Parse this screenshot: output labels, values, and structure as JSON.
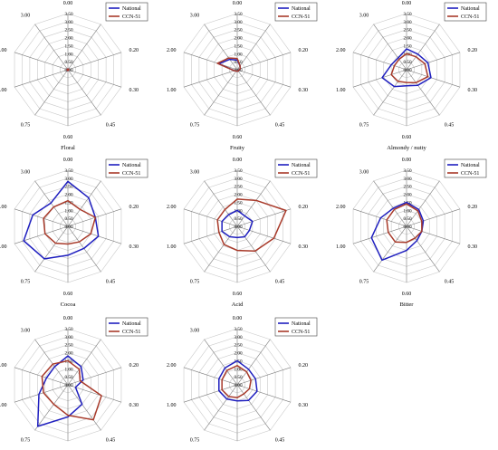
{
  "colors": {
    "national": "#1f1fbf",
    "ccn51": "#a83a2a",
    "grid": "#c9c9c9",
    "spoke": "#7a7a7a"
  },
  "chart_data": [
    {
      "type": "radar",
      "title": "Floral",
      "axes": [
        "0.00",
        "0.10",
        "0.20",
        "0.30",
        "0.45",
        "0.60",
        "0.75",
        "1.00",
        "2.00",
        "3.00"
      ],
      "r_ticks": [
        "0.00",
        "0.50",
        "1.00",
        "1.50",
        "2.00",
        "2.50",
        "3.00",
        "3.50"
      ],
      "rlim": [
        0,
        3.5
      ],
      "series": [
        {
          "name": "National",
          "values": [
            0.05,
            0.05,
            0.05,
            0.05,
            0.05,
            0.05,
            0.05,
            0.05,
            0.05,
            0.05
          ]
        },
        {
          "name": "CCN-51",
          "values": [
            0.05,
            0.05,
            0.05,
            0.05,
            0.05,
            0.05,
            0.05,
            0.05,
            0.05,
            0.05
          ]
        }
      ]
    },
    {
      "type": "radar",
      "title": "Fruity",
      "axes": [
        "0.00",
        "0.10",
        "0.20",
        "0.30",
        "0.45",
        "0.60",
        "0.75",
        "1.00",
        "2.00",
        "3.00"
      ],
      "r_ticks": [
        "0.00",
        "0.50",
        "1.00",
        "1.50",
        "2.00",
        "2.50",
        "3.00",
        "3.50"
      ],
      "rlim": [
        0,
        3.5
      ],
      "series": [
        {
          "name": "National",
          "values": [
            0.6,
            0.3,
            0.2,
            0.1,
            0.1,
            0.1,
            0.1,
            0.2,
            1.2,
            0.8
          ]
        },
        {
          "name": "CCN-51",
          "values": [
            0.7,
            0.3,
            0.2,
            0.1,
            0.1,
            0.1,
            0.1,
            0.2,
            1.3,
            0.9
          ]
        }
      ]
    },
    {
      "type": "radar",
      "title": "Almondy / nutty",
      "axes": [
        "0.00",
        "0.10",
        "0.20",
        "0.30",
        "0.45",
        "0.60",
        "0.75",
        "1.00",
        "2.00",
        "3.00"
      ],
      "r_ticks": [
        "0.00",
        "0.50",
        "1.00",
        "1.50",
        "2.00",
        "2.50",
        "3.00",
        "3.50"
      ],
      "rlim": [
        0,
        3.5
      ],
      "series": [
        {
          "name": "National",
          "values": [
            1.3,
            1.2,
            1.4,
            1.6,
            1.2,
            1.0,
            1.3,
            1.6,
            1.0,
            0.9
          ]
        },
        {
          "name": "CCN-51",
          "values": [
            1.0,
            1.0,
            1.2,
            1.4,
            1.0,
            0.8,
            0.9,
            1.0,
            0.8,
            0.8
          ]
        }
      ]
    },
    {
      "type": "radar",
      "title": "Cocoa",
      "axes": [
        "0.00",
        "0.10",
        "0.20",
        "0.30",
        "0.45",
        "0.60",
        "0.75",
        "1.00",
        "2.00",
        "3.00"
      ],
      "r_ticks": [
        "0.00",
        "0.50",
        "1.00",
        "1.50",
        "2.00",
        "2.50",
        "3.00",
        "3.50"
      ],
      "rlim": [
        0,
        3.5
      ],
      "series": [
        {
          "name": "National",
          "values": [
            2.8,
            2.2,
            1.8,
            2.0,
            1.7,
            1.8,
            2.5,
            2.9,
            2.3,
            1.8
          ]
        },
        {
          "name": "CCN-51",
          "values": [
            1.6,
            1.3,
            1.8,
            1.5,
            1.2,
            1.1,
            1.3,
            1.5,
            1.6,
            1.5
          ]
        }
      ]
    },
    {
      "type": "radar",
      "title": "Acid",
      "axes": [
        "0.00",
        "0.10",
        "0.20",
        "0.30",
        "0.45",
        "0.60",
        "0.75",
        "1.00",
        "2.00",
        "3.00"
      ],
      "r_ticks": [
        "0.00",
        "0.50",
        "1.00",
        "1.50",
        "2.00",
        "2.50",
        "3.00",
        "3.50"
      ],
      "rlim": [
        0,
        3.5
      ],
      "series": [
        {
          "name": "National",
          "values": [
            1.0,
            0.8,
            1.0,
            0.8,
            0.8,
            0.7,
            0.8,
            1.0,
            1.0,
            0.9
          ]
        },
        {
          "name": "CCN-51",
          "values": [
            1.7,
            2.0,
            3.2,
            2.4,
            1.9,
            1.5,
            1.4,
            1.2,
            1.3,
            1.3
          ]
        }
      ]
    },
    {
      "type": "radar",
      "title": "Bitter",
      "axes": [
        "0.00",
        "0.10",
        "0.20",
        "0.30",
        "0.45",
        "0.60",
        "0.75",
        "1.00",
        "2.00",
        "3.00"
      ],
      "r_ticks": [
        "0.00",
        "0.50",
        "1.00",
        "1.50",
        "2.00",
        "2.50",
        "3.00",
        "3.50"
      ],
      "rlim": [
        0,
        3.5
      ],
      "series": [
        {
          "name": "National",
          "values": [
            1.5,
            1.3,
            1.1,
            1.0,
            1.1,
            1.5,
            2.6,
            2.3,
            1.7,
            1.4
          ]
        },
        {
          "name": "CCN-51",
          "values": [
            1.4,
            1.2,
            1.0,
            1.0,
            0.9,
            1.0,
            1.2,
            1.2,
            1.3,
            1.3
          ]
        }
      ]
    },
    {
      "type": "radar",
      "title": "",
      "axes": [
        "0.00",
        "0.10",
        "0.20",
        "0.30",
        "0.45",
        "0.60",
        "0.75",
        "1.00",
        "2.00",
        "3.00"
      ],
      "r_ticks": [
        "0.00",
        "0.50",
        "1.00",
        "1.50",
        "2.00",
        "2.50",
        "3.00",
        "3.50"
      ],
      "rlim": [
        0,
        3.5
      ],
      "series": [
        {
          "name": "National",
          "values": [
            1.8,
            1.4,
            1.0,
            0.5,
            1.5,
            2.0,
            3.2,
            1.9,
            1.4,
            1.4
          ]
        },
        {
          "name": "CCN-51",
          "values": [
            1.5,
            1.2,
            0.8,
            2.2,
            2.7,
            1.9,
            1.5,
            1.6,
            1.7,
            1.6
          ]
        }
      ]
    },
    {
      "type": "radar",
      "title": "",
      "axes": [
        "0.00",
        "0.10",
        "0.20",
        "0.30",
        "0.45",
        "0.60",
        "0.75",
        "1.00",
        "2.00",
        "3.00"
      ],
      "r_ticks": [
        "0.00",
        "0.50",
        "1.00",
        "1.50",
        "2.00",
        "2.50",
        "3.00",
        "3.50"
      ],
      "rlim": [
        0,
        3.5
      ],
      "series": [
        {
          "name": "National",
          "values": [
            1.5,
            1.2,
            1.2,
            1.3,
            1.2,
            1.0,
            1.1,
            1.2,
            1.2,
            1.3
          ]
        },
        {
          "name": "CCN-51",
          "values": [
            1.2,
            1.0,
            0.9,
            0.8,
            0.7,
            0.8,
            0.9,
            1.0,
            1.0,
            1.1
          ]
        }
      ]
    }
  ]
}
